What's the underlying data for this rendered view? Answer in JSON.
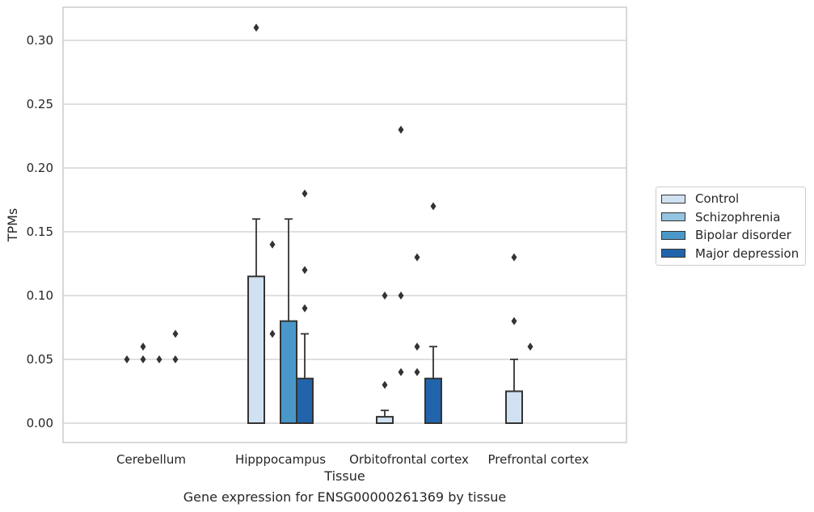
{
  "chart_data": {
    "type": "bar",
    "title": "",
    "caption": "Gene expression for ENSG00000261369 by tissue",
    "xlabel": "Tissue",
    "ylabel": "TPMs",
    "ylim": [
      -0.015,
      0.325
    ],
    "yticks": [
      "0.00",
      "0.05",
      "0.10",
      "0.15",
      "0.20",
      "0.25",
      "0.30"
    ],
    "grid": true,
    "legend_position": "right",
    "categories": [
      "Cerebellum",
      "Hipppocampus",
      "Orbitofrontal cortex",
      "Prefrontal cortex"
    ],
    "series": [
      {
        "name": "Control",
        "color": "#d0e1f2",
        "values": [
          0.0,
          0.115,
          0.005,
          0.025
        ],
        "error_upper": [
          null,
          0.16,
          0.01,
          0.05
        ],
        "outliers": [
          [
            0.05
          ],
          [
            0.31
          ],
          [
            0.03,
            0.1
          ],
          [
            0.13,
            0.08
          ]
        ]
      },
      {
        "name": "Schizophrenia",
        "color": "#94c4df",
        "values": [
          0.0,
          0.0,
          0.0,
          0.0
        ],
        "error_upper": [
          null,
          null,
          null,
          null
        ],
        "outliers": [
          [
            0.05,
            0.06
          ],
          [
            0.14,
            0.07
          ],
          [
            0.23,
            0.1,
            0.04
          ],
          [
            0.06
          ]
        ]
      },
      {
        "name": "Bipolar disorder",
        "color": "#4a98c9",
        "values": [
          0.0,
          0.08,
          0.0,
          0.0
        ],
        "error_upper": [
          null,
          0.16,
          null,
          null
        ],
        "outliers": [
          [
            0.05
          ],
          [],
          [
            0.13,
            0.06,
            0.04
          ],
          []
        ]
      },
      {
        "name": "Major depression",
        "color": "#2164ab",
        "values": [
          0.0,
          0.035,
          0.035,
          0.0
        ],
        "error_upper": [
          null,
          0.07,
          0.06,
          null
        ],
        "outliers": [
          [
            0.07,
            0.05
          ],
          [
            0.18,
            0.12,
            0.09
          ],
          [
            0.17
          ],
          []
        ]
      }
    ]
  }
}
